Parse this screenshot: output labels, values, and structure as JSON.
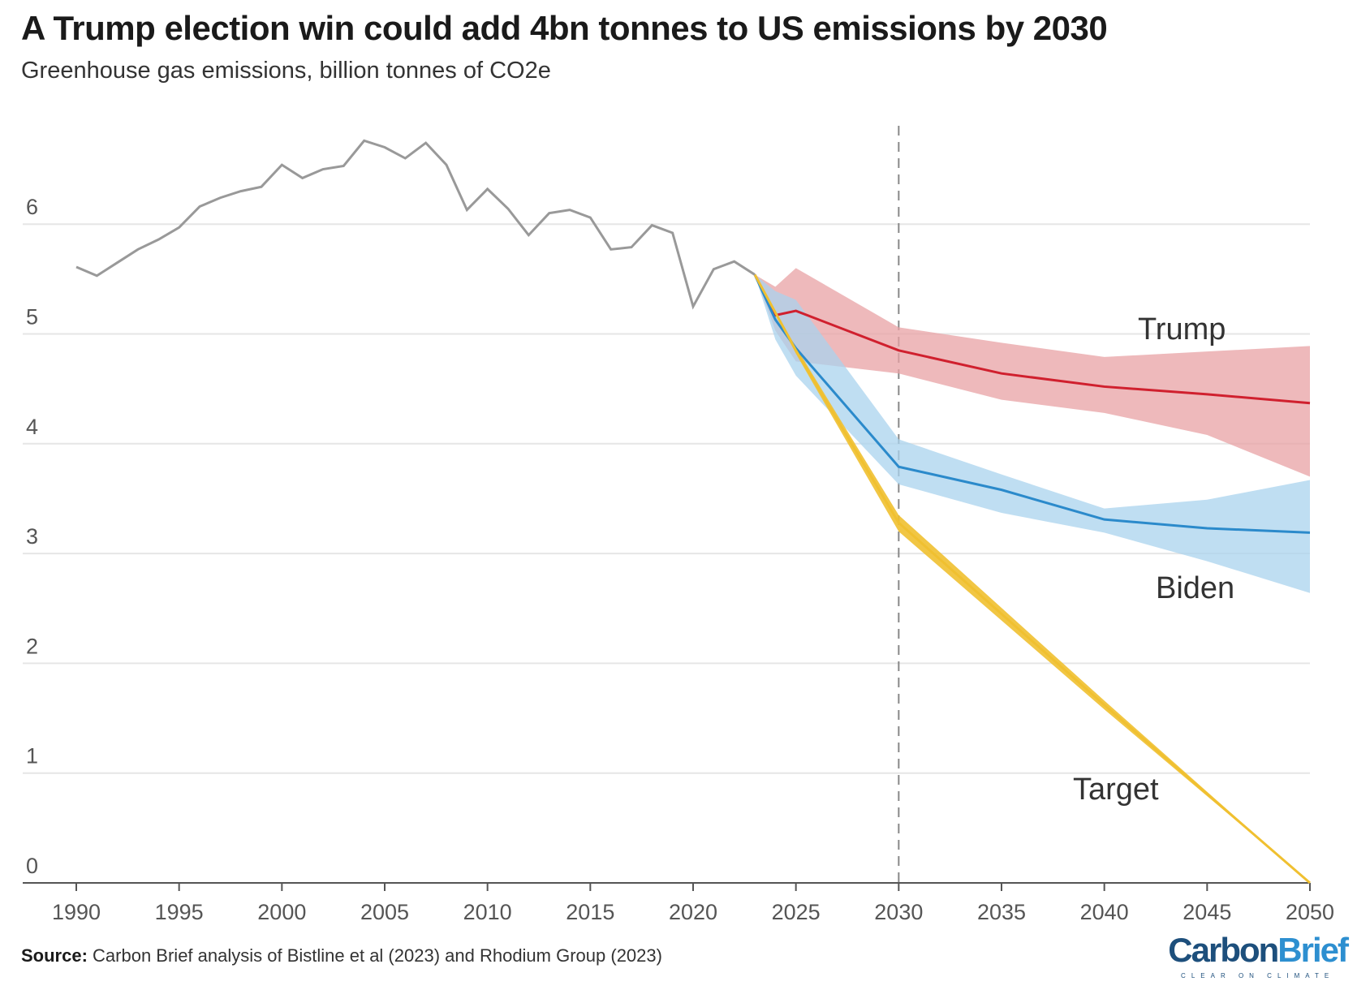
{
  "chart_data": {
    "type": "line",
    "title": "A Trump election win could add 4bn tonnes to US emissions by 2030",
    "subtitle": "Greenhouse gas emissions, billion tonnes of CO2e",
    "xlabel": "",
    "ylabel": "",
    "xlim": [
      1990,
      2050
    ],
    "ylim": [
      0,
      7
    ],
    "xticks": [
      1990,
      1995,
      2000,
      2005,
      2010,
      2015,
      2020,
      2025,
      2030,
      2035,
      2040,
      2045,
      2050
    ],
    "yticks": [
      0,
      1,
      2,
      3,
      4,
      5,
      6
    ],
    "grid": true,
    "vline": 2030,
    "colors": {
      "historical": "#999999",
      "trump": "#d0202e",
      "trump_band": "#e8a2a4",
      "biden": "#2b8acb",
      "biden_band": "#a9d3ee",
      "target": "#f0c030"
    },
    "historical": {
      "x": [
        1990,
        1991,
        1992,
        1993,
        1994,
        1995,
        1996,
        1997,
        1998,
        1999,
        2000,
        2001,
        2002,
        2003,
        2004,
        2005,
        2006,
        2007,
        2008,
        2009,
        2010,
        2011,
        2012,
        2013,
        2014,
        2015,
        2016,
        2017,
        2018,
        2019,
        2020,
        2021,
        2022,
        2023
      ],
      "y": [
        5.61,
        5.53,
        5.65,
        5.77,
        5.86,
        5.97,
        6.16,
        6.24,
        6.3,
        6.34,
        6.54,
        6.42,
        6.5,
        6.53,
        6.76,
        6.7,
        6.6,
        6.74,
        6.54,
        6.13,
        6.32,
        6.14,
        5.9,
        6.1,
        6.13,
        6.06,
        5.77,
        5.79,
        5.99,
        5.92,
        5.25,
        5.59,
        5.66,
        5.54
      ]
    },
    "series": [
      {
        "name": "Trump",
        "x": [
          2023,
          2024,
          2025,
          2030,
          2035,
          2040,
          2045,
          2050
        ],
        "y": [
          5.54,
          5.17,
          5.21,
          4.85,
          4.64,
          4.52,
          4.45,
          4.37
        ],
        "band_x": [
          2023,
          2024,
          2025,
          2030,
          2035,
          2040,
          2045,
          2050
        ],
        "upper": [
          5.54,
          5.43,
          5.6,
          5.06,
          4.92,
          4.79,
          4.84,
          4.89
        ],
        "lower": [
          5.54,
          5.03,
          4.75,
          4.64,
          4.4,
          4.28,
          4.08,
          3.7
        ]
      },
      {
        "name": "Biden",
        "x": [
          2023,
          2024,
          2025,
          2030,
          2035,
          2040,
          2045,
          2050
        ],
        "y": [
          5.54,
          5.13,
          4.87,
          3.79,
          3.58,
          3.31,
          3.23,
          3.19
        ],
        "band_x": [
          2023,
          2024,
          2025,
          2030,
          2035,
          2040,
          2045,
          2050
        ],
        "upper": [
          5.54,
          5.39,
          5.31,
          4.04,
          3.72,
          3.41,
          3.49,
          3.67
        ],
        "lower": [
          5.54,
          4.95,
          4.62,
          3.63,
          3.37,
          3.19,
          2.93,
          2.64
        ]
      },
      {
        "name": "Target",
        "x": [
          2023,
          2025,
          2030,
          2040,
          2050
        ],
        "y": [
          5.54,
          4.85,
          3.28,
          1.62,
          0
        ],
        "band_x": [
          2023,
          2025,
          2030,
          2040,
          2050
        ],
        "upper": [
          5.54,
          4.88,
          3.35,
          1.66,
          0
        ],
        "lower": [
          5.54,
          4.82,
          3.2,
          1.58,
          0
        ]
      }
    ],
    "source_label": "Source:",
    "source_text": " Carbon Brief analysis of Bistline et al (2023) and Rhodium Group (2023)",
    "logo": {
      "part1": "Carbon",
      "part2": "Brief",
      "tagline": "CLEAR ON CLIMATE"
    }
  }
}
